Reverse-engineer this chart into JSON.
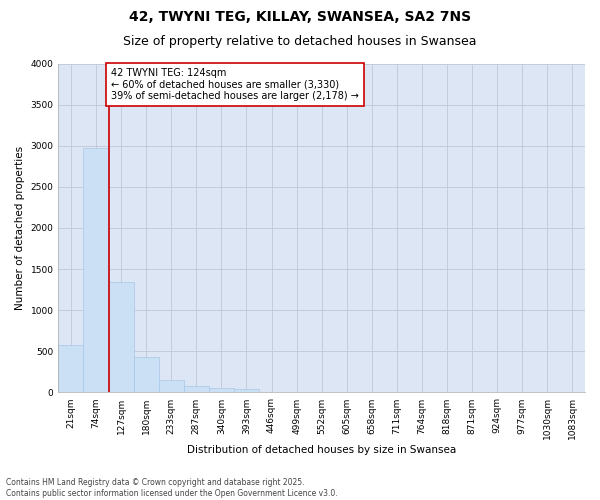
{
  "title_line1": "42, TWYNI TEG, KILLAY, SWANSEA, SA2 7NS",
  "title_line2": "Size of property relative to detached houses in Swansea",
  "xlabel": "Distribution of detached houses by size in Swansea",
  "ylabel": "Number of detached properties",
  "bar_color": "#cce0f5",
  "bar_edge_color": "#a8c8e8",
  "grid_color": "#c0c8d8",
  "background_color": "#dce6f5",
  "vline_color": "#cc0000",
  "annotation_box_text": "42 TWYNI TEG: 124sqm\n← 60% of detached houses are smaller (3,330)\n39% of semi-detached houses are larger (2,178) →",
  "annotation_box_edge_color": "#cc0000",
  "categories": [
    "21sqm",
    "74sqm",
    "127sqm",
    "180sqm",
    "233sqm",
    "287sqm",
    "340sqm",
    "393sqm",
    "446sqm",
    "499sqm",
    "552sqm",
    "605sqm",
    "658sqm",
    "711sqm",
    "764sqm",
    "818sqm",
    "871sqm",
    "924sqm",
    "977sqm",
    "1030sqm",
    "1083sqm"
  ],
  "values": [
    580,
    2970,
    1340,
    430,
    150,
    80,
    50,
    40,
    0,
    0,
    0,
    0,
    0,
    0,
    0,
    0,
    0,
    0,
    0,
    0,
    0
  ],
  "ylim": [
    0,
    4000
  ],
  "yticks": [
    0,
    500,
    1000,
    1500,
    2000,
    2500,
    3000,
    3500,
    4000
  ],
  "footnote": "Contains HM Land Registry data © Crown copyright and database right 2025.\nContains public sector information licensed under the Open Government Licence v3.0.",
  "title_fontsize": 10,
  "subtitle_fontsize": 9,
  "axis_label_fontsize": 7.5,
  "tick_fontsize": 6.5,
  "annotation_fontsize": 7,
  "footnote_fontsize": 5.5
}
